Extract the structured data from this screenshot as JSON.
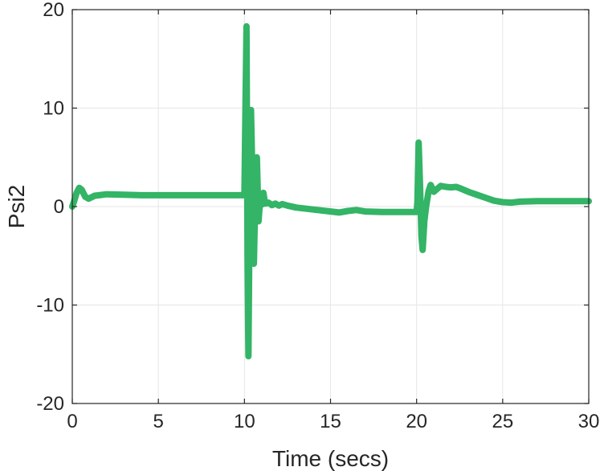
{
  "chart_data": {
    "type": "line",
    "title": "",
    "xlabel": "Time (secs)",
    "ylabel": "Psi2",
    "xlim": [
      0,
      30
    ],
    "ylim": [
      -20,
      20
    ],
    "xticks": [
      0,
      5,
      10,
      15,
      20,
      25,
      30
    ],
    "yticks": [
      -20,
      -10,
      0,
      10,
      20
    ],
    "grid": true,
    "series": [
      {
        "color": "#33b466",
        "points": [
          [
            0.0,
            0.0
          ],
          [
            0.1,
            0.5
          ],
          [
            0.25,
            1.4
          ],
          [
            0.4,
            1.9
          ],
          [
            0.55,
            1.7
          ],
          [
            0.75,
            1.0
          ],
          [
            0.95,
            0.8
          ],
          [
            1.3,
            1.1
          ],
          [
            2.0,
            1.25
          ],
          [
            3.0,
            1.2
          ],
          [
            4.0,
            1.15
          ],
          [
            6.0,
            1.15
          ],
          [
            8.0,
            1.15
          ],
          [
            9.9,
            1.15
          ],
          [
            10.0,
            1.15
          ],
          [
            10.06,
            10.0
          ],
          [
            10.12,
            18.3
          ],
          [
            10.18,
            -5.0
          ],
          [
            10.23,
            -15.2
          ],
          [
            10.3,
            0.0
          ],
          [
            10.38,
            9.8
          ],
          [
            10.45,
            4.0
          ],
          [
            10.55,
            -5.8
          ],
          [
            10.63,
            1.0
          ],
          [
            10.72,
            5.0
          ],
          [
            10.82,
            -1.5
          ],
          [
            10.92,
            1.0
          ],
          [
            11.0,
            0.2
          ],
          [
            11.1,
            1.4
          ],
          [
            11.2,
            0.3
          ],
          [
            11.4,
            0.4
          ],
          [
            11.6,
            0.15
          ],
          [
            11.8,
            0.3
          ],
          [
            12.0,
            0.1
          ],
          [
            12.2,
            0.25
          ],
          [
            12.5,
            0.1
          ],
          [
            13.0,
            -0.1
          ],
          [
            14.0,
            -0.3
          ],
          [
            15.0,
            -0.5
          ],
          [
            15.5,
            -0.6
          ],
          [
            16.0,
            -0.45
          ],
          [
            16.5,
            -0.35
          ],
          [
            17.0,
            -0.5
          ],
          [
            18.0,
            -0.55
          ],
          [
            19.0,
            -0.55
          ],
          [
            20.0,
            -0.55
          ],
          [
            20.05,
            0.5
          ],
          [
            20.12,
            6.5
          ],
          [
            20.2,
            2.0
          ],
          [
            20.28,
            -3.0
          ],
          [
            20.35,
            -4.4
          ],
          [
            20.45,
            -1.5
          ],
          [
            20.55,
            0.0
          ],
          [
            20.7,
            1.6
          ],
          [
            20.82,
            2.2
          ],
          [
            21.0,
            1.5
          ],
          [
            21.2,
            1.8
          ],
          [
            21.4,
            2.1
          ],
          [
            21.7,
            2.0
          ],
          [
            22.0,
            1.95
          ],
          [
            22.3,
            2.0
          ],
          [
            22.6,
            1.8
          ],
          [
            23.0,
            1.5
          ],
          [
            23.5,
            1.2
          ],
          [
            24.0,
            0.9
          ],
          [
            24.5,
            0.6
          ],
          [
            25.0,
            0.45
          ],
          [
            25.5,
            0.4
          ],
          [
            26.0,
            0.5
          ],
          [
            27.0,
            0.55
          ],
          [
            28.0,
            0.55
          ],
          [
            29.0,
            0.55
          ],
          [
            30.0,
            0.55
          ]
        ]
      }
    ]
  }
}
